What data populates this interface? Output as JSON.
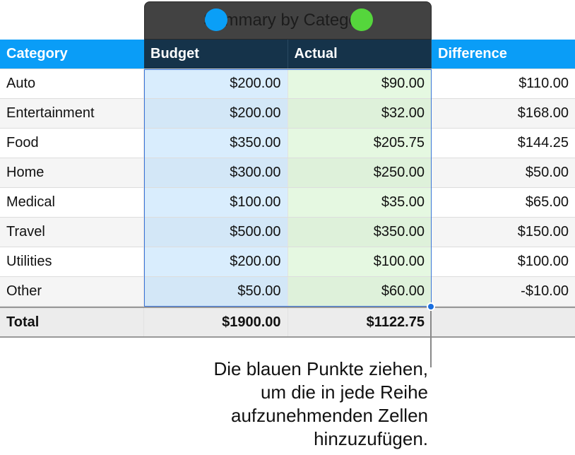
{
  "table": {
    "title": "Summary by Category",
    "headers": [
      "Category",
      "Budget",
      "Actual",
      "Difference"
    ],
    "rows": [
      [
        "Auto",
        "$200.00",
        "$90.00",
        "$110.00"
      ],
      [
        "Entertainment",
        "$200.00",
        "$32.00",
        "$168.00"
      ],
      [
        "Food",
        "$350.00",
        "$205.75",
        "$144.25"
      ],
      [
        "Home",
        "$300.00",
        "$250.00",
        "$50.00"
      ],
      [
        "Medical",
        "$100.00",
        "$35.00",
        "$65.00"
      ],
      [
        "Travel",
        "$500.00",
        "$350.00",
        "$150.00"
      ],
      [
        "Utilities",
        "$200.00",
        "$100.00",
        "$100.00"
      ],
      [
        "Other",
        "$50.00",
        "$60.00",
        "-$10.00"
      ]
    ],
    "total": [
      "Total",
      "$1900.00",
      "$1122.75",
      ""
    ]
  },
  "colors": {
    "header": "#0a9df7",
    "blue_dot": "#0a9ff7",
    "green_dot": "#55d63c",
    "selection": "#3a74d8"
  },
  "callout": [
    "Die blauen Punkte ziehen,",
    "um die in jede Reihe",
    "aufzunehmenden Zellen",
    "hinzuzufügen."
  ]
}
